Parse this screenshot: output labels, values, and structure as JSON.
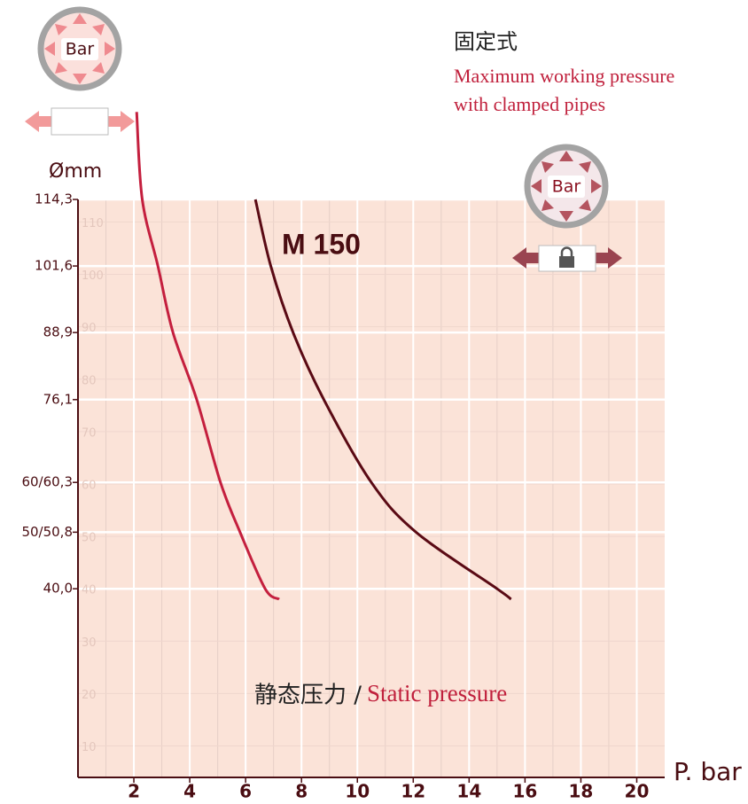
{
  "chart_data": {
    "type": "line",
    "title": "固定式",
    "subtitle": [
      "Maximum working pressure",
      "with clamped pipes"
    ],
    "x_label": "P. bar",
    "y_label": "Ømm",
    "annotations": [
      "M 150",
      "静态压力 /",
      "Static pressure"
    ],
    "xlim": [
      0,
      21
    ],
    "ylim": [
      4,
      114.3
    ],
    "xticks": [
      2,
      4,
      6,
      8,
      10,
      12,
      14,
      16,
      18,
      20
    ],
    "yticks": [
      {
        "value": 114.3,
        "label": "114,3"
      },
      {
        "value": 101.6,
        "label": "101,6"
      },
      {
        "value": 88.9,
        "label": "88,9"
      },
      {
        "value": 76.1,
        "label": "76,1"
      },
      {
        "value": 60.3,
        "label": "60/60,3"
      },
      {
        "value": 50.8,
        "label": "50/50,8"
      },
      {
        "value": 40,
        "label": "40,0"
      }
    ],
    "grid_yticks": [
      10,
      20,
      30,
      40,
      50,
      60,
      70,
      80,
      90,
      100,
      110
    ],
    "grid": true,
    "series": [
      {
        "color": "#c41f3e",
        "x": [
          2.1,
          2.3,
          2.86,
          3.4,
          4.25,
          5.1,
          5.8,
          6.7,
          7.2
        ],
        "values": [
          131,
          114.3,
          101.6,
          88.9,
          76.1,
          60.3,
          50.8,
          40,
          38
        ]
      },
      {
        "color": "#5a0a14",
        "x": [
          6.35,
          6.9,
          7.7,
          8.8,
          10.5,
          12.1,
          15.0,
          15.5
        ],
        "values": [
          114.3,
          101.6,
          88.9,
          76.1,
          60.3,
          50.8,
          40,
          38
        ]
      }
    ]
  },
  "icons": [
    "Bar",
    "Bar"
  ]
}
